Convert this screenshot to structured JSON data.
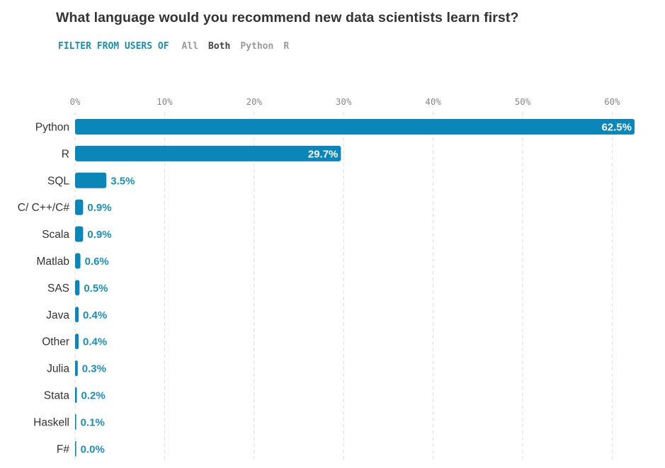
{
  "filter": {
    "label": "FILTER FROM USERS OF",
    "options": [
      {
        "label": "All",
        "active": false
      },
      {
        "label": "Both",
        "active": true
      },
      {
        "label": "Python",
        "active": false
      },
      {
        "label": "R",
        "active": false
      }
    ]
  },
  "colors": {
    "bar": "#0a86b8",
    "accent": "#1a8fb5"
  },
  "chart_data": {
    "type": "bar",
    "orientation": "horizontal",
    "title": "What language would you recommend new data scientists learn first?",
    "categories": [
      "Python",
      "R",
      "SQL",
      "C/ C++/C#",
      "Scala",
      "Matlab",
      "SAS",
      "Java",
      "Other",
      "Julia",
      "Stata",
      "Haskell",
      "F#"
    ],
    "values": [
      62.5,
      29.7,
      3.5,
      0.9,
      0.9,
      0.6,
      0.5,
      0.4,
      0.4,
      0.3,
      0.2,
      0.1,
      0.0
    ],
    "value_labels": [
      "62.5%",
      "29.7%",
      "3.5%",
      "0.9%",
      "0.9%",
      "0.6%",
      "0.5%",
      "0.4%",
      "0.4%",
      "0.3%",
      "0.2%",
      "0.1%",
      "0.0%"
    ],
    "ticks": [
      0,
      10,
      20,
      30,
      40,
      50,
      60
    ],
    "tick_labels": [
      "0%",
      "10%",
      "20%",
      "30%",
      "40%",
      "50%",
      "60%"
    ],
    "xlim": [
      0,
      62.5
    ],
    "grid": true,
    "xlabel": "",
    "ylabel": ""
  }
}
